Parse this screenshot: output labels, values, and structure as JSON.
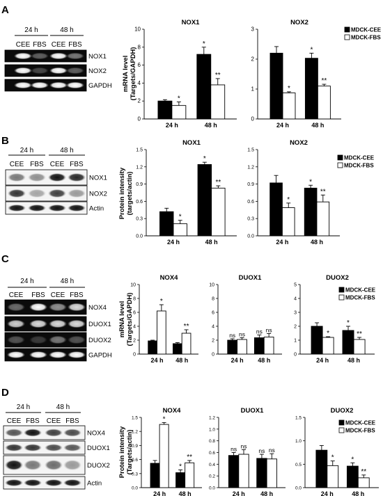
{
  "figure": {
    "legend_cee": "MDCK-CEE",
    "legend_fbs": "MDCK-FBS",
    "sample_cee": "CEE",
    "sample_fbs": "FBS",
    "panels": [
      {
        "letter": "A",
        "times": [
          "24 h",
          "48 h"
        ],
        "blot_labels": [
          "NOX1",
          "NOX2",
          "GAPDH"
        ],
        "ylabel": "mRNA level",
        "ylabel2": "(Targets/GAPDH)"
      },
      {
        "letter": "B",
        "times": [
          "24 h",
          "48 h"
        ],
        "blot_labels": [
          "NOX1",
          "NOX2",
          "Actin"
        ],
        "ylabel": "Protein intensity",
        "ylabel2": "(targets/actin)"
      },
      {
        "letter": "C",
        "times": [
          "24 h",
          "48 h"
        ],
        "blot_labels": [
          "NOX4",
          "DUOX1",
          "DUOX2",
          "GAPDH"
        ],
        "ylabel": "mRNA level",
        "ylabel2": "(Targets/GAPDH)"
      },
      {
        "letter": "D",
        "times": [
          "24 h",
          "48 h"
        ],
        "blot_labels": [
          "NOX4",
          "DUOX1",
          "DUOX2",
          "Actin"
        ],
        "ylabel": "Protein intensity",
        "ylabel2": "(Targets/actin)"
      }
    ]
  },
  "chart_data": [
    {
      "type": "bar",
      "panel": "A",
      "title": "NOX1",
      "categories": [
        "24 h",
        "48 h"
      ],
      "ylim": [
        0,
        10
      ],
      "yticks": [
        0,
        2,
        4,
        6,
        8,
        10
      ],
      "series": [
        {
          "name": "MDCK-CEE",
          "values": [
            2.0,
            7.2
          ],
          "errors": [
            0.15,
            0.8
          ]
        },
        {
          "name": "MDCK-FBS",
          "values": [
            1.5,
            3.8
          ],
          "errors": [
            0.4,
            0.7
          ]
        }
      ],
      "annotations": [
        [
          "",
          "*"
        ],
        [
          "*",
          "**"
        ]
      ]
    },
    {
      "type": "bar",
      "panel": "A",
      "title": "NOX2",
      "categories": [
        "24 h",
        "48 h"
      ],
      "ylim": [
        0,
        3
      ],
      "yticks": [
        0,
        1,
        2,
        3
      ],
      "series": [
        {
          "name": "MDCK-CEE",
          "values": [
            2.2,
            2.03
          ],
          "errors": [
            0.22,
            0.17
          ]
        },
        {
          "name": "MDCK-FBS",
          "values": [
            0.87,
            1.1
          ],
          "errors": [
            0.04,
            0.06
          ]
        }
      ],
      "annotations": [
        [
          "",
          "*"
        ],
        [
          "*",
          "**"
        ]
      ]
    },
    {
      "type": "bar",
      "panel": "B",
      "title": "NOX1",
      "categories": [
        "24 h",
        "48 h"
      ],
      "ylim": [
        0,
        1.5
      ],
      "yticks": [
        0.0,
        0.3,
        0.6,
        0.9,
        1.2,
        1.5
      ],
      "series": [
        {
          "name": "MDCK-CEE",
          "values": [
            0.42,
            1.24
          ],
          "errors": [
            0.06,
            0.04
          ]
        },
        {
          "name": "MDCK-FBS",
          "values": [
            0.21,
            0.83
          ],
          "errors": [
            0.06,
            0.04
          ]
        }
      ],
      "annotations": [
        [
          "",
          "*"
        ],
        [
          "*",
          "**"
        ]
      ]
    },
    {
      "type": "bar",
      "panel": "B",
      "title": "NOX2",
      "categories": [
        "24 h",
        "48 h"
      ],
      "ylim": [
        0,
        1.5
      ],
      "yticks": [
        0.0,
        0.3,
        0.6,
        0.9,
        1.2,
        1.5
      ],
      "series": [
        {
          "name": "MDCK-CEE",
          "values": [
            0.92,
            0.83
          ],
          "errors": [
            0.13,
            0.05
          ]
        },
        {
          "name": "MDCK-FBS",
          "values": [
            0.49,
            0.59
          ],
          "errors": [
            0.08,
            0.12
          ]
        }
      ],
      "annotations": [
        [
          "",
          "*"
        ],
        [
          "*",
          "**"
        ]
      ]
    },
    {
      "type": "bar",
      "panel": "C",
      "title": "NOX4",
      "categories": [
        "24 h",
        "48 h"
      ],
      "ylim": [
        0,
        10
      ],
      "yticks": [
        0,
        2,
        4,
        6,
        8,
        10
      ],
      "series": [
        {
          "name": "MDCK-CEE",
          "values": [
            1.9,
            1.5
          ],
          "errors": [
            0.1,
            0.15
          ]
        },
        {
          "name": "MDCK-FBS",
          "values": [
            6.2,
            3.0
          ],
          "errors": [
            0.9,
            0.5
          ]
        }
      ],
      "annotations": [
        [
          "",
          "*"
        ],
        [
          "",
          "**"
        ]
      ]
    },
    {
      "type": "bar",
      "panel": "C",
      "title": "DUOX1",
      "categories": [
        "24 h",
        "48 h"
      ],
      "ylim": [
        0,
        10
      ],
      "yticks": [
        0,
        2,
        4,
        6,
        8,
        10
      ],
      "series": [
        {
          "name": "MDCK-CEE",
          "values": [
            2.0,
            2.35
          ],
          "errors": [
            0.2,
            0.4
          ]
        },
        {
          "name": "MDCK-FBS",
          "values": [
            2.1,
            2.45
          ],
          "errors": [
            0.25,
            0.5
          ]
        }
      ],
      "annotations": [
        [
          "ns",
          "ns"
        ],
        [
          "ns",
          "ns"
        ]
      ]
    },
    {
      "type": "bar",
      "panel": "C",
      "title": "DUOX2",
      "categories": [
        "24 h",
        "48 h"
      ],
      "ylim": [
        0,
        5
      ],
      "yticks": [
        0,
        1,
        2,
        3,
        4,
        5
      ],
      "series": [
        {
          "name": "MDCK-CEE",
          "values": [
            2.0,
            1.7
          ],
          "errors": [
            0.25,
            0.3
          ]
        },
        {
          "name": "MDCK-FBS",
          "values": [
            1.2,
            1.05
          ],
          "errors": [
            0.05,
            0.15
          ]
        }
      ],
      "annotations": [
        [
          "",
          "*"
        ],
        [
          "*",
          "**"
        ]
      ]
    },
    {
      "type": "bar",
      "panel": "D",
      "title": "NOX4",
      "categories": [
        "24 h",
        "48 h"
      ],
      "ylim": [
        0,
        1.5
      ],
      "yticks": [
        0.0,
        0.3,
        0.6,
        0.9,
        1.2,
        1.5
      ],
      "series": [
        {
          "name": "MDCK-CEE",
          "values": [
            0.52,
            0.32
          ],
          "errors": [
            0.06,
            0.06
          ]
        },
        {
          "name": "MDCK-FBS",
          "values": [
            1.35,
            0.53
          ],
          "errors": [
            0.04,
            0.05
          ]
        }
      ],
      "annotations": [
        [
          "",
          "*"
        ],
        [
          "*",
          "**"
        ]
      ]
    },
    {
      "type": "bar",
      "panel": "D",
      "title": "DUOX1",
      "categories": [
        "24 h",
        "48 h"
      ],
      "ylim": [
        0,
        1.2
      ],
      "yticks": [
        0.0,
        0.2,
        0.4,
        0.6,
        0.8,
        1.0,
        1.2
      ],
      "series": [
        {
          "name": "MDCK-CEE",
          "values": [
            0.55,
            0.5
          ],
          "errors": [
            0.05,
            0.07
          ]
        },
        {
          "name": "MDCK-FBS",
          "values": [
            0.57,
            0.49
          ],
          "errors": [
            0.08,
            0.09
          ]
        }
      ],
      "annotations": [
        [
          "ns",
          "ns"
        ],
        [
          "ns",
          "ns"
        ]
      ]
    },
    {
      "type": "bar",
      "panel": "D",
      "title": "DUOX2",
      "categories": [
        "24 h",
        "48 h"
      ],
      "ylim": [
        0,
        1.5
      ],
      "yticks": [
        0.0,
        0.5,
        1.0,
        1.5
      ],
      "series": [
        {
          "name": "MDCK-CEE",
          "values": [
            0.8,
            0.46
          ],
          "errors": [
            0.1,
            0.07
          ]
        },
        {
          "name": "MDCK-FBS",
          "values": [
            0.47,
            0.21
          ],
          "errors": [
            0.1,
            0.06
          ]
        }
      ],
      "annotations": [
        [
          "",
          "*"
        ],
        [
          "*",
          "**"
        ]
      ]
    }
  ]
}
